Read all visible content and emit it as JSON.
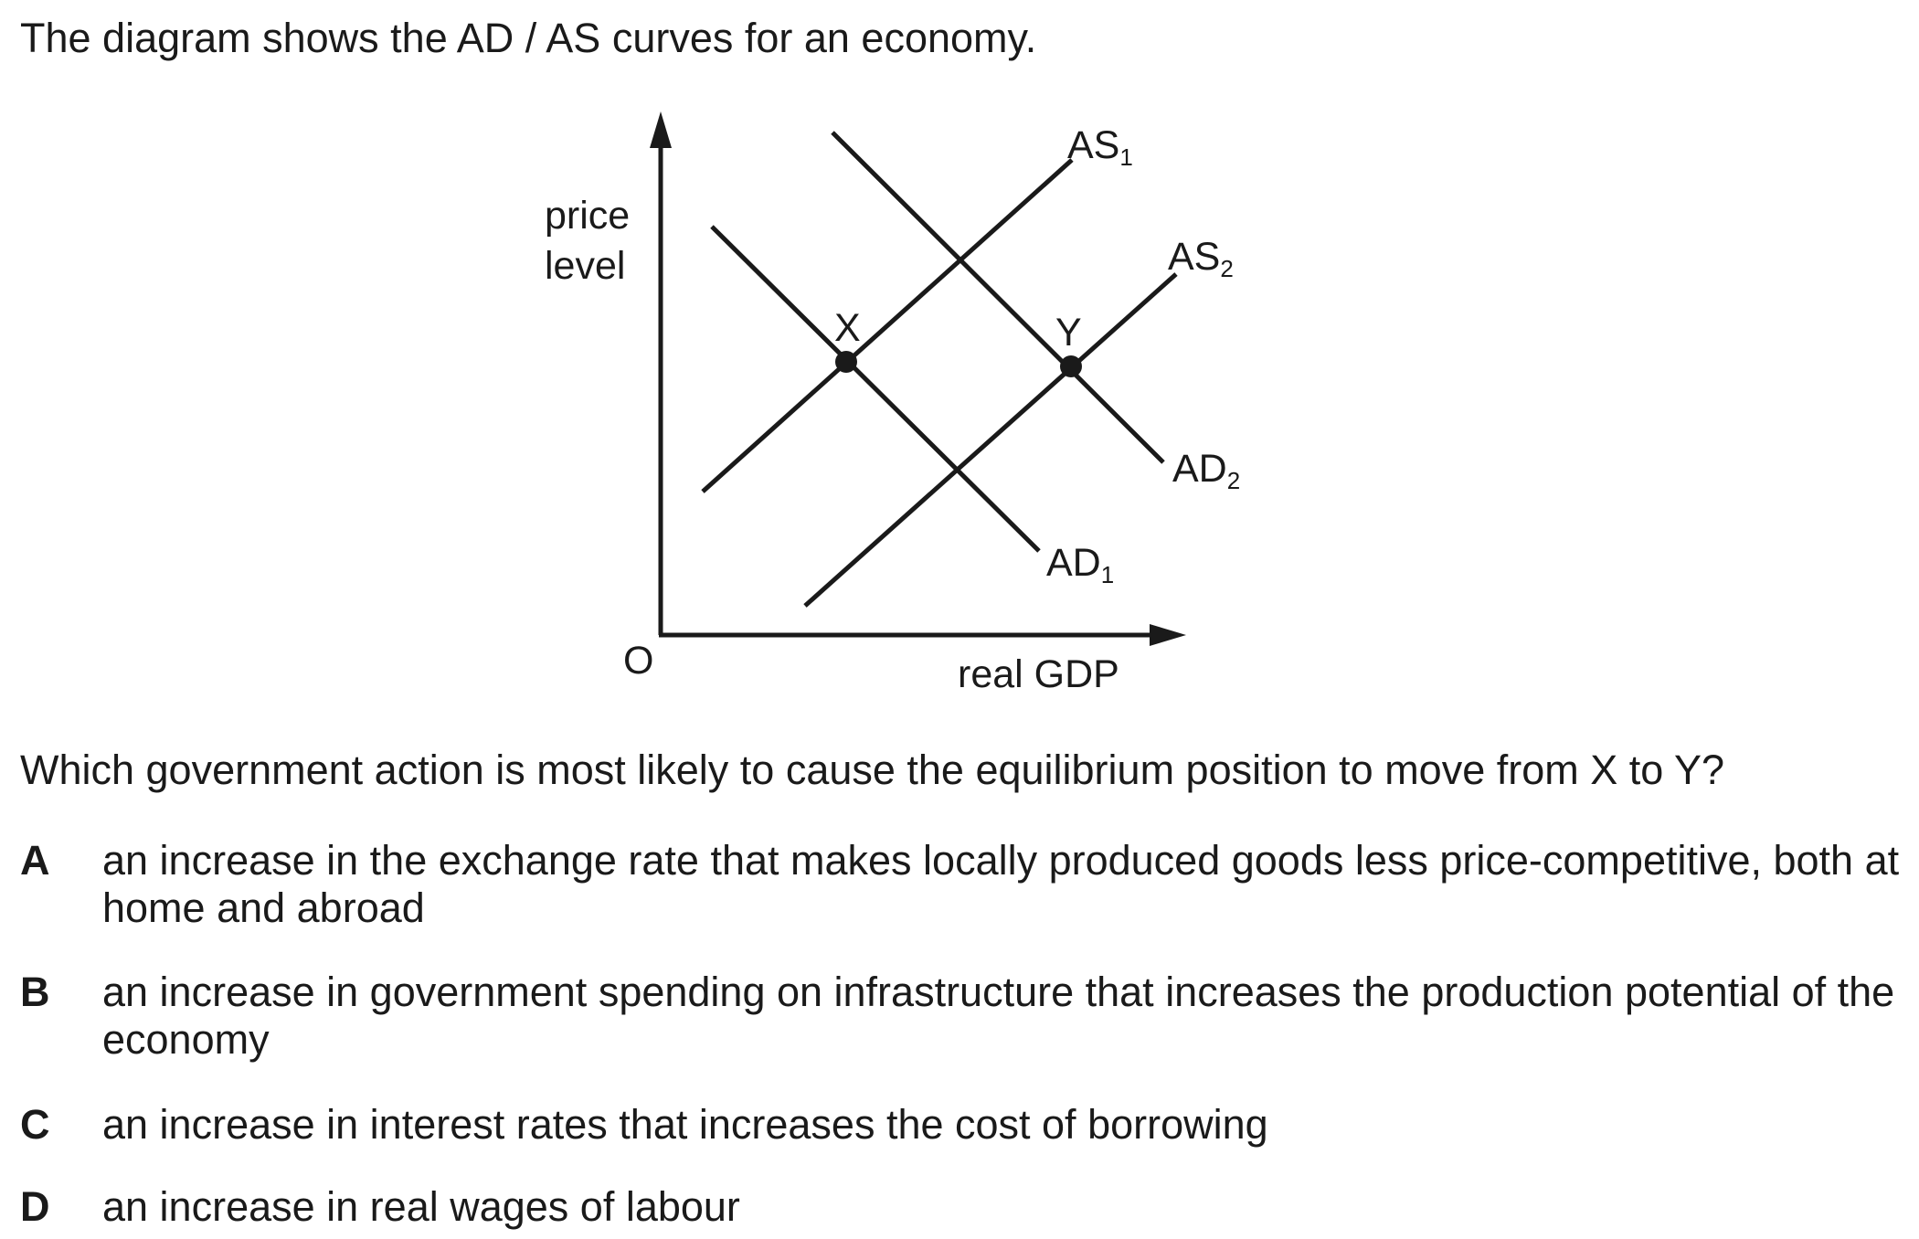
{
  "intro": "The diagram shows the AD / AS curves for an economy.",
  "diagram": {
    "y_axis_label_line1": "price",
    "y_axis_label_line2": "level",
    "origin_label": "O",
    "x_axis_label": "real GDP",
    "curves": [
      {
        "id": "AS1",
        "base": "AS",
        "sub": "1"
      },
      {
        "id": "AS2",
        "base": "AS",
        "sub": "2"
      },
      {
        "id": "AD1",
        "base": "AD",
        "sub": "1"
      },
      {
        "id": "AD2",
        "base": "AD",
        "sub": "2"
      }
    ],
    "points": [
      {
        "label": "X"
      },
      {
        "label": "Y"
      }
    ]
  },
  "question": "Which government action is most likely to cause the equilibrium position to move from X to Y?",
  "options": [
    {
      "letter": "A",
      "text": "an increase in the exchange rate that makes locally produced goods less price-competitive, both at home and abroad"
    },
    {
      "letter": "B",
      "text": "an increase in government spending on infrastructure that increases the production potential of the economy"
    },
    {
      "letter": "C",
      "text": "an increase in interest rates that increases the cost of borrowing"
    },
    {
      "letter": "D",
      "text": "an increase in real wages of labour"
    }
  ]
}
